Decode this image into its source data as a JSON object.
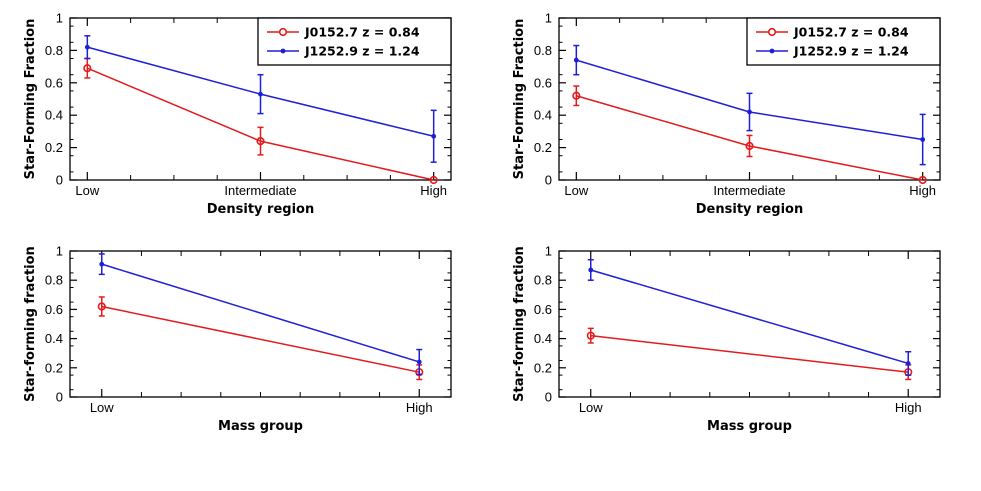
{
  "colors": {
    "red": "#e41a1c",
    "blue": "#1f1fd6",
    "axis": "#000000",
    "background": "#ffffff"
  },
  "legend": {
    "placement": "top-right",
    "entries": [
      {
        "label": "J0152.7 z = 0.84",
        "color": "#e41a1c",
        "marker": "open-circle"
      },
      {
        "label": "J1252.9 z = 1.24",
        "color": "#1f1fd6",
        "marker": "filled-dot"
      }
    ]
  },
  "chart_data": [
    {
      "id": "top-left",
      "type": "line",
      "xlabel": "Density region",
      "ylabel": "Star-Forming Fraction",
      "categories": [
        "Low",
        "Intermediate",
        "High"
      ],
      "category_x": [
        0,
        1,
        2
      ],
      "xlim": [
        -0.1,
        2.1
      ],
      "ylim": [
        0,
        1
      ],
      "yticks": [
        0,
        0.2,
        0.4,
        0.6,
        0.8,
        1
      ],
      "ytick_labels": [
        "0",
        "0.2",
        "0.4",
        "0.6",
        "0.8",
        "1"
      ],
      "xminor_ticks": [
        0.25,
        0.5,
        0.75,
        1.25,
        1.5,
        1.75
      ],
      "legend": true,
      "series": [
        {
          "name": "J0152.7 z = 0.84",
          "color": "#e41a1c",
          "marker": "open-circle",
          "values": [
            0.69,
            0.24,
            0.0
          ],
          "err": [
            0.06,
            0.085,
            0.0
          ]
        },
        {
          "name": "J1252.9 z = 1.24",
          "color": "#1f1fd6",
          "marker": "filled-dot",
          "values": [
            0.82,
            0.53,
            0.27
          ],
          "err": [
            0.07,
            0.12,
            0.16
          ]
        }
      ]
    },
    {
      "id": "top-right",
      "type": "line",
      "xlabel": "Density region",
      "ylabel": "Star-Forming Fraction",
      "categories": [
        "Low",
        "Intermediate",
        "High"
      ],
      "category_x": [
        0,
        1,
        2
      ],
      "xlim": [
        -0.1,
        2.1
      ],
      "ylim": [
        0,
        1
      ],
      "yticks": [
        0,
        0.2,
        0.4,
        0.6,
        0.8,
        1
      ],
      "ytick_labels": [
        "0",
        "0.2",
        "0.4",
        "0.6",
        "0.8",
        "1"
      ],
      "xminor_ticks": [
        0.25,
        0.5,
        0.75,
        1.25,
        1.5,
        1.75
      ],
      "legend": true,
      "series": [
        {
          "name": "J0152.7 z = 0.84",
          "color": "#e41a1c",
          "marker": "open-circle",
          "values": [
            0.52,
            0.21,
            0.0
          ],
          "err": [
            0.06,
            0.065,
            0.0
          ]
        },
        {
          "name": "J1252.9 z = 1.24",
          "color": "#1f1fd6",
          "marker": "filled-dot",
          "values": [
            0.74,
            0.42,
            0.25
          ],
          "err": [
            0.09,
            0.115,
            0.155
          ]
        }
      ]
    },
    {
      "id": "bottom-left",
      "type": "line",
      "xlabel": "Mass group",
      "ylabel": "Star-forming fraction",
      "categories": [
        "Low",
        "High"
      ],
      "category_x": [
        0,
        1
      ],
      "xlim": [
        -0.1,
        1.1
      ],
      "ylim": [
        0,
        1
      ],
      "yticks": [
        0,
        0.2,
        0.4,
        0.6,
        0.8,
        1
      ],
      "ytick_labels": [
        "0",
        "0.2",
        "0.4",
        "0.6",
        "0.8",
        "1"
      ],
      "xminor_ticks": [
        0.125,
        0.25,
        0.375,
        0.5,
        0.625,
        0.75,
        0.875
      ],
      "legend": false,
      "series": [
        {
          "name": "J0152.7 z = 0.84",
          "color": "#e41a1c",
          "marker": "open-circle",
          "values": [
            0.62,
            0.17
          ],
          "err": [
            0.065,
            0.05
          ]
        },
        {
          "name": "J1252.9 z = 1.24",
          "color": "#1f1fd6",
          "marker": "filled-dot",
          "values": [
            0.91,
            0.24
          ],
          "err": [
            0.07,
            0.085
          ]
        }
      ]
    },
    {
      "id": "bottom-right",
      "type": "line",
      "xlabel": "Mass group",
      "ylabel": "Star-forming fraction",
      "categories": [
        "Low",
        "High"
      ],
      "category_x": [
        0,
        1
      ],
      "xlim": [
        -0.1,
        1.1
      ],
      "ylim": [
        0,
        1
      ],
      "yticks": [
        0,
        0.2,
        0.4,
        0.6,
        0.8,
        1
      ],
      "ytick_labels": [
        "0",
        "0.2",
        "0.4",
        "0.6",
        "0.8",
        "1"
      ],
      "xminor_ticks": [
        0.125,
        0.25,
        0.375,
        0.5,
        0.625,
        0.75,
        0.875
      ],
      "legend": false,
      "series": [
        {
          "name": "J0152.7 z = 0.84",
          "color": "#e41a1c",
          "marker": "open-circle",
          "values": [
            0.42,
            0.17
          ],
          "err": [
            0.05,
            0.05
          ]
        },
        {
          "name": "J1252.9 z = 1.24",
          "color": "#1f1fd6",
          "marker": "filled-dot",
          "values": [
            0.87,
            0.23
          ],
          "err": [
            0.07,
            0.08
          ]
        }
      ]
    }
  ]
}
